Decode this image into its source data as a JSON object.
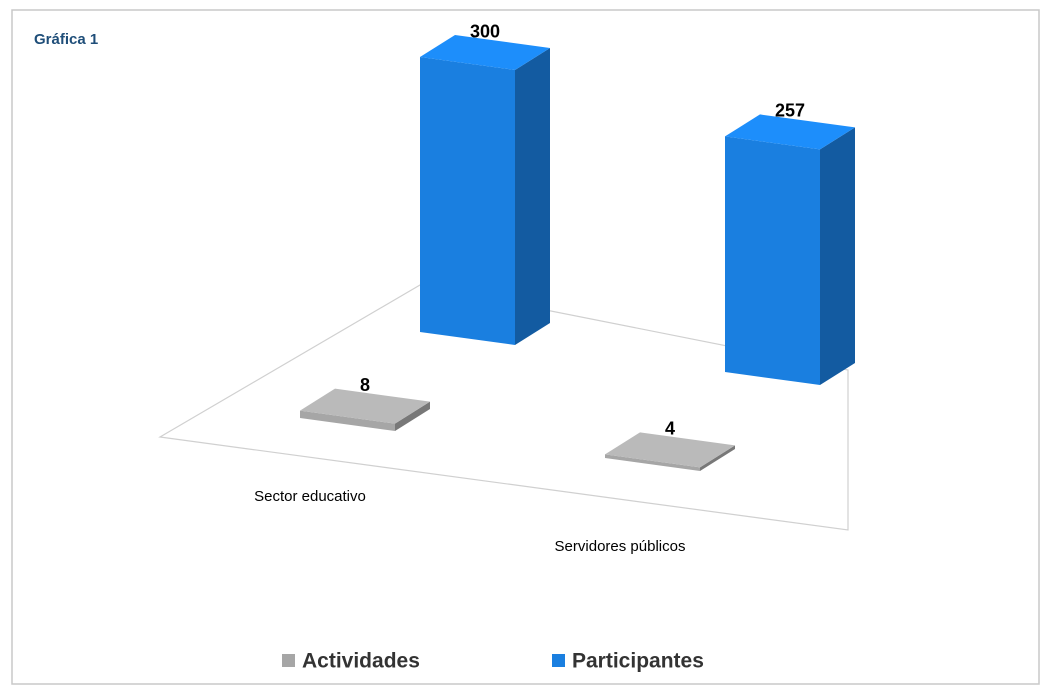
{
  "chart_data": {
    "type": "bar3d",
    "title": "Gráfica 1",
    "categories": [
      "Sector educativo",
      "Servidores públicos"
    ],
    "series": [
      {
        "name": "Actividades",
        "color": "#a6a6a6",
        "values": [
          8,
          4
        ]
      },
      {
        "name": "Participantes",
        "color": "#1a7fe0",
        "values": [
          300,
          257
        ]
      }
    ],
    "legend": "bottom"
  }
}
